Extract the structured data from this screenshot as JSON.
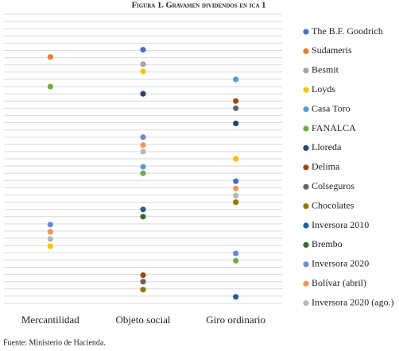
{
  "chart_data": {
    "type": "dot",
    "title": "Figura 1. Gravamen dividendos en ica 1",
    "source": "Fuente: Ministerio de Hacienda.",
    "categories": [
      "Mercantilidad",
      "Objeto social",
      "Giro ordinario"
    ],
    "ylim": [
      0,
      40
    ],
    "grid": true,
    "ygrid": [
      0,
      1,
      2,
      3,
      4,
      5,
      6,
      7,
      8,
      9,
      10,
      11,
      12,
      13,
      14,
      15,
      16,
      17,
      18,
      19,
      20,
      21,
      22,
      23,
      24,
      25,
      26,
      27,
      28,
      29,
      30,
      31,
      32,
      33,
      34,
      35,
      36,
      37,
      38,
      39,
      40
    ],
    "series": [
      {
        "name": "The B.F. Goodrich",
        "color": "#4472c4",
        "values": [
          null,
          35.1,
          16.9
        ]
      },
      {
        "name": "Sudameris",
        "color": "#ed7d31",
        "values": [
          34.1,
          null,
          null
        ]
      },
      {
        "name": "Besmit",
        "color": "#a5a5a5",
        "values": [
          null,
          33.1,
          null
        ]
      },
      {
        "name": "Loyds",
        "color": "#ffc000",
        "values": [
          7.9,
          32.1,
          20.0
        ]
      },
      {
        "name": "Casa Toro",
        "color": "#5b9bd5",
        "values": [
          null,
          18.9,
          31.0
        ]
      },
      {
        "name": "FANALCA",
        "color": "#70ad47",
        "values": [
          30.0,
          18.0,
          5.9
        ]
      },
      {
        "name": "Lloreda",
        "color": "#264478",
        "values": [
          null,
          29.0,
          24.9
        ]
      },
      {
        "name": "Delima",
        "color": "#9e480e",
        "values": [
          null,
          3.9,
          28.0
        ]
      },
      {
        "name": "Colseguros",
        "color": "#636363",
        "values": [
          null,
          3.0,
          27.0
        ]
      },
      {
        "name": "Chocolates",
        "color": "#997300",
        "values": [
          null,
          1.9,
          14.0
        ]
      },
      {
        "name": "Inversora 2010",
        "color": "#255e91",
        "values": [
          null,
          13.0,
          0.9
        ]
      },
      {
        "name": "Brembo",
        "color": "#43682b",
        "values": [
          null,
          12.0,
          null
        ]
      },
      {
        "name": "Inversora 2020",
        "color": "#698ed0",
        "values": [
          10.9,
          23.0,
          6.9
        ]
      },
      {
        "name": "Bolívar (abril)",
        "color": "#f1975a",
        "values": [
          9.9,
          21.9,
          15.9
        ]
      },
      {
        "name": "Inversora 2020 (ago.)",
        "color": "#b7b7b7",
        "values": [
          8.9,
          21.0,
          14.9
        ]
      }
    ]
  }
}
